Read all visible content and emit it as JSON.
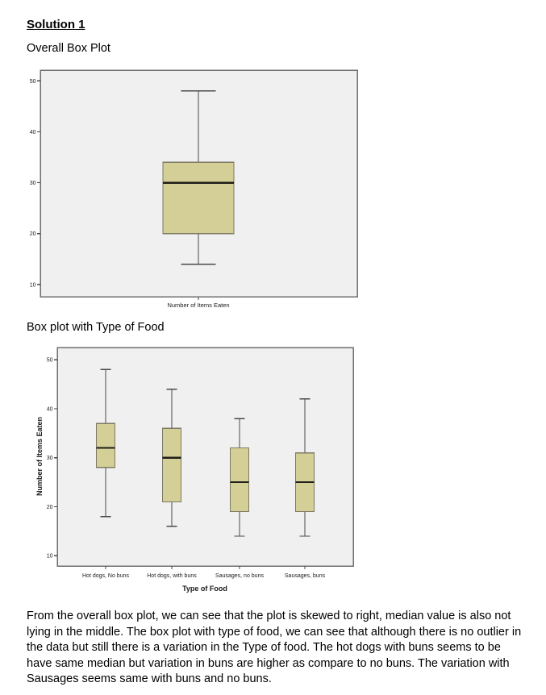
{
  "headings": {
    "solution": "Solution 1",
    "overall": "Overall Box Plot",
    "by_food": "Box plot with Type of Food"
  },
  "paragraph": "From the overall box plot, we can see that the plot is skewed to right, median value is also not lying in the middle. The box plot with type of food, we can see that although there is no outlier in the data but still there is a variation in the Type of food. The hot dogs with buns seems to be have same median but variation in buns are higher as compare to no buns. The variation with Sausages seems same with buns and no buns.",
  "colors": {
    "box_fill": "#d3cf96",
    "box_border": "#7d7a64",
    "median_line": "#1f1e18",
    "whisker": "#4a4a4a",
    "panel_bg": "#f0f0f0",
    "panel_border": "#6e6e6e",
    "tick_label": "#1a1a1a",
    "text": "#000000"
  },
  "chart_data": [
    {
      "type": "boxplot",
      "title": "Overall Box Plot",
      "xlabel": "",
      "ylabel": "",
      "yticks": [
        10,
        20,
        30,
        40,
        50
      ],
      "ylim": [
        7.6,
        52.1
      ],
      "grid": false,
      "legend": "none",
      "categories": [
        "Number of Items Eaten"
      ],
      "boxes": [
        {
          "label": "Number of Items Eaten",
          "min": 14,
          "q1": 20,
          "median": 30,
          "q3": 34,
          "max": 48
        }
      ]
    },
    {
      "type": "boxplot",
      "title": "Box plot with Type of Food",
      "xlabel": "Type of Food",
      "ylabel": "Number of Items Eaten",
      "yticks": [
        10,
        20,
        30,
        40,
        50
      ],
      "ylim": [
        7.9,
        52.5
      ],
      "grid": false,
      "legend": "none",
      "categories": [
        "Hot dogs, No buns",
        "Hot dogs, with buns",
        "Sausages, no buns",
        "Sausages, buns"
      ],
      "boxes": [
        {
          "label": "Hot dogs, No buns",
          "min": 18,
          "q1": 28,
          "median": 32,
          "q3": 37,
          "max": 48
        },
        {
          "label": "Hot dogs, with buns",
          "min": 16,
          "q1": 21,
          "median": 30,
          "q3": 36,
          "max": 44
        },
        {
          "label": "Sausages, no buns",
          "min": 14,
          "q1": 19,
          "median": 25,
          "q3": 32,
          "max": 38
        },
        {
          "label": "Sausages, buns",
          "min": 14,
          "q1": 19,
          "median": 25,
          "q3": 31,
          "max": 42
        }
      ]
    }
  ]
}
